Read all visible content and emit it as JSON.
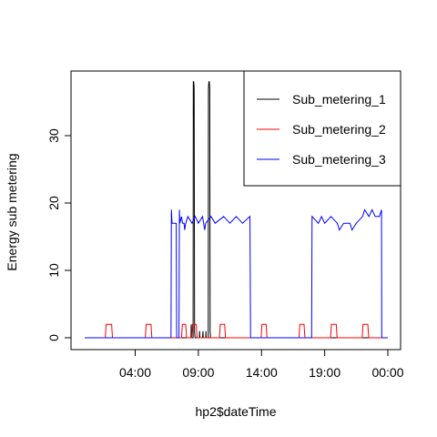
{
  "chart_data": {
    "type": "line",
    "title": "",
    "xlabel": "hp2$dateTime",
    "ylabel": "Energy sub metering",
    "xlim": [
      "00:00",
      "24:00"
    ],
    "ylim": [
      0,
      38
    ],
    "grid": false,
    "legend_placement": "top-right",
    "x_ticks": [
      {
        "x": "04:00",
        "label": "04:00"
      },
      {
        "x": "09:00",
        "label": "09:00"
      },
      {
        "x": "14:00",
        "label": "14:00"
      },
      {
        "x": "19:00",
        "label": "19:00"
      },
      {
        "x": "24:00",
        "label": "00:00"
      }
    ],
    "y_ticks": [
      0,
      10,
      20,
      30
    ],
    "series": [
      {
        "name": "Sub_metering_1",
        "color": "#000000",
        "points": [
          [
            "00:00",
            0
          ],
          [
            "08:25",
            0
          ],
          [
            "08:26",
            2
          ],
          [
            "08:27",
            0
          ],
          [
            "08:35",
            0
          ],
          [
            "08:36",
            38
          ],
          [
            "08:38",
            38
          ],
          [
            "08:40",
            37
          ],
          [
            "08:42",
            1
          ],
          [
            "08:44",
            0
          ],
          [
            "09:05",
            0
          ],
          [
            "09:06",
            1
          ],
          [
            "09:07",
            0
          ],
          [
            "09:20",
            0
          ],
          [
            "09:22",
            1
          ],
          [
            "09:23",
            0
          ],
          [
            "09:35",
            0
          ],
          [
            "09:36",
            1
          ],
          [
            "09:37",
            0
          ],
          [
            "09:47",
            0
          ],
          [
            "09:48",
            37
          ],
          [
            "09:50",
            38
          ],
          [
            "09:52",
            38
          ],
          [
            "09:54",
            37
          ],
          [
            "09:56",
            1
          ],
          [
            "09:58",
            0
          ],
          [
            "24:00",
            0
          ]
        ]
      },
      {
        "name": "Sub_metering_2",
        "color": "#ff0000",
        "points": [
          [
            "00:00",
            0
          ],
          [
            "01:38",
            0
          ],
          [
            "01:40",
            1
          ],
          [
            "01:42",
            2
          ],
          [
            "02:08",
            2
          ],
          [
            "02:10",
            1
          ],
          [
            "02:12",
            0
          ],
          [
            "04:48",
            0
          ],
          [
            "04:50",
            1
          ],
          [
            "04:52",
            2
          ],
          [
            "05:15",
            2
          ],
          [
            "05:17",
            1
          ],
          [
            "05:19",
            0
          ],
          [
            "07:40",
            0
          ],
          [
            "07:42",
            1
          ],
          [
            "07:44",
            2
          ],
          [
            "08:00",
            2
          ],
          [
            "08:02",
            1
          ],
          [
            "08:04",
            0
          ],
          [
            "08:28",
            0
          ],
          [
            "08:30",
            1
          ],
          [
            "08:32",
            2
          ],
          [
            "08:50",
            2
          ],
          [
            "08:52",
            1
          ],
          [
            "08:54",
            0
          ],
          [
            "10:40",
            0
          ],
          [
            "10:42",
            1
          ],
          [
            "10:44",
            2
          ],
          [
            "11:05",
            2
          ],
          [
            "11:07",
            1
          ],
          [
            "11:09",
            0
          ],
          [
            "13:58",
            0
          ],
          [
            "14:00",
            1
          ],
          [
            "14:02",
            2
          ],
          [
            "14:22",
            2
          ],
          [
            "14:24",
            1
          ],
          [
            "14:26",
            0
          ],
          [
            "16:58",
            0
          ],
          [
            "17:00",
            1
          ],
          [
            "17:02",
            2
          ],
          [
            "17:22",
            2
          ],
          [
            "17:24",
            1
          ],
          [
            "17:26",
            0
          ],
          [
            "19:28",
            0
          ],
          [
            "19:30",
            1
          ],
          [
            "19:32",
            2
          ],
          [
            "19:55",
            2
          ],
          [
            "19:57",
            1
          ],
          [
            "19:59",
            0
          ],
          [
            "21:58",
            0
          ],
          [
            "22:00",
            1
          ],
          [
            "22:02",
            2
          ],
          [
            "22:25",
            2
          ],
          [
            "22:27",
            1
          ],
          [
            "22:29",
            0
          ],
          [
            "24:00",
            0
          ]
        ]
      },
      {
        "name": "Sub_metering_3",
        "color": "#0000ff",
        "points": [
          [
            "00:00",
            0
          ],
          [
            "06:50",
            0
          ],
          [
            "06:52",
            19
          ],
          [
            "06:55",
            17
          ],
          [
            "07:15",
            17
          ],
          [
            "07:17",
            0
          ],
          [
            "07:28",
            0
          ],
          [
            "07:30",
            19
          ],
          [
            "07:32",
            17
          ],
          [
            "07:40",
            18
          ],
          [
            "07:45",
            17
          ],
          [
            "07:52",
            17
          ],
          [
            "07:55",
            16
          ],
          [
            "08:00",
            17
          ],
          [
            "08:10",
            18
          ],
          [
            "08:30",
            17
          ],
          [
            "08:45",
            18
          ],
          [
            "09:00",
            17
          ],
          [
            "09:20",
            18
          ],
          [
            "09:30",
            16
          ],
          [
            "09:35",
            17
          ],
          [
            "10:00",
            18
          ],
          [
            "10:20",
            17
          ],
          [
            "11:00",
            18
          ],
          [
            "11:30",
            17
          ],
          [
            "12:00",
            18
          ],
          [
            "12:30",
            17
          ],
          [
            "13:05",
            18
          ],
          [
            "13:08",
            0
          ],
          [
            "17:58",
            0
          ],
          [
            "18:00",
            18
          ],
          [
            "18:30",
            17
          ],
          [
            "18:45",
            18
          ],
          [
            "19:00",
            17
          ],
          [
            "19:30",
            18
          ],
          [
            "20:00",
            17
          ],
          [
            "20:10",
            16
          ],
          [
            "20:30",
            17
          ],
          [
            "21:00",
            17
          ],
          [
            "21:10",
            16
          ],
          [
            "21:30",
            17
          ],
          [
            "22:00",
            18
          ],
          [
            "22:10",
            19
          ],
          [
            "22:30",
            18
          ],
          [
            "22:45",
            19
          ],
          [
            "23:00",
            18
          ],
          [
            "23:20",
            18
          ],
          [
            "23:30",
            19
          ],
          [
            "23:31",
            0
          ],
          [
            "24:00",
            0
          ]
        ]
      }
    ]
  }
}
